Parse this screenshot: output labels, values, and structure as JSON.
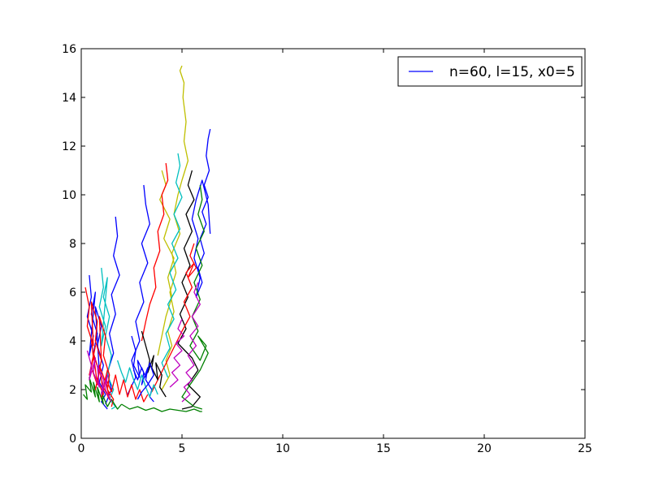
{
  "chart_data": {
    "type": "line",
    "title": "",
    "xlabel": "",
    "ylabel": "",
    "xlim": [
      0,
      25
    ],
    "ylim": [
      0,
      16
    ],
    "xticks": [
      0,
      5,
      10,
      15,
      20,
      25
    ],
    "yticks": [
      0,
      2,
      4,
      6,
      8,
      10,
      12,
      14,
      16
    ],
    "grid": false,
    "legend": {
      "placement": "top-right",
      "label": "n=60, l=15, x0=5",
      "color": "#0000ff"
    },
    "color_cycle": [
      "#0000ff",
      "#008000",
      "#ff0000",
      "#00bfbf",
      "#bf00bf",
      "#bfbf00",
      "#000000"
    ],
    "series": [
      {
        "color": "#bfbf00",
        "x": [
          5.0,
          4.9,
          5.1,
          5.05,
          5.2,
          5.1,
          5.3,
          5.0,
          4.8,
          4.6,
          4.9,
          4.5,
          4.7,
          4.4,
          4.6,
          4.3,
          4.5,
          4.2,
          4.4,
          4.0
        ],
        "y": [
          15.3,
          15.1,
          14.6,
          14.0,
          13.0,
          12.2,
          11.4,
          10.6,
          10.0,
          9.2,
          8.4,
          7.6,
          6.8,
          6.0,
          5.2,
          4.4,
          3.8,
          3.2,
          2.6,
          2.0
        ]
      },
      {
        "color": "#bfbf00",
        "x": [
          4.0,
          4.2,
          3.9,
          4.4,
          4.1,
          4.6,
          4.3,
          4.5,
          4.2,
          4.0,
          3.8
        ],
        "y": [
          11.0,
          10.4,
          9.8,
          9.0,
          8.2,
          7.4,
          6.6,
          5.8,
          5.0,
          4.2,
          3.4
        ]
      },
      {
        "color": "#0000ff",
        "x": [
          6.4,
          6.3,
          6.2,
          6.35,
          6.1,
          6.3,
          6.0,
          6.2,
          5.9,
          6.1,
          5.8,
          6.0,
          5.7,
          5.9,
          5.6,
          5.8,
          5.5,
          5.7,
          6.0,
          6.3,
          6.4
        ],
        "y": [
          12.7,
          12.3,
          11.6,
          11.0,
          10.4,
          9.9,
          9.3,
          8.8,
          8.2,
          7.6,
          7.0,
          6.4,
          5.8,
          6.6,
          7.4,
          8.2,
          9.0,
          9.8,
          10.6,
          9.6,
          8.4
        ]
      },
      {
        "color": "#00bfbf",
        "x": [
          4.8,
          4.9,
          4.7,
          5.0,
          4.6,
          4.9,
          4.5,
          4.8,
          4.4,
          4.7,
          4.3,
          4.6,
          4.2,
          4.4,
          4.0,
          4.3
        ],
        "y": [
          11.7,
          11.2,
          10.5,
          9.9,
          9.2,
          8.6,
          8.0,
          7.4,
          6.8,
          6.1,
          5.5,
          4.9,
          4.3,
          3.7,
          3.1,
          2.5
        ]
      },
      {
        "color": "#000000",
        "x": [
          5.5,
          5.3,
          5.6,
          5.2,
          5.5,
          5.1,
          5.4,
          5.0,
          5.3,
          4.9,
          5.2,
          4.8,
          5.5,
          5.8,
          5.3,
          5.9,
          5.5,
          5.0
        ],
        "y": [
          11.0,
          10.4,
          9.8,
          9.2,
          8.5,
          7.8,
          7.1,
          6.4,
          5.8,
          5.1,
          4.5,
          3.9,
          3.3,
          2.8,
          2.2,
          1.7,
          1.3,
          1.2
        ]
      },
      {
        "color": "#008000",
        "x": [
          5.9,
          6.0,
          5.8,
          6.1,
          5.7,
          6.0,
          5.6,
          5.9,
          5.5,
          5.8,
          5.4,
          5.9,
          6.2,
          5.8,
          6.3,
          5.9,
          5.4,
          5.0,
          5.6,
          6.0
        ],
        "y": [
          10.4,
          9.8,
          9.2,
          8.5,
          7.8,
          7.1,
          6.4,
          5.7,
          5.0,
          4.4,
          3.8,
          3.2,
          3.8,
          4.2,
          3.5,
          2.8,
          2.2,
          1.7,
          1.3,
          1.2
        ]
      },
      {
        "color": "#ff0000",
        "x": [
          5.6,
          5.4,
          5.7,
          5.3,
          5.6,
          5.2,
          5.5,
          5.1,
          5.4,
          5.0,
          4.7,
          4.4,
          4.1,
          3.8,
          3.5
        ],
        "y": [
          8.0,
          7.5,
          7.0,
          6.6,
          7.2,
          6.8,
          6.2,
          5.6,
          5.0,
          4.4,
          3.9,
          3.4,
          2.9,
          2.4,
          1.9
        ]
      },
      {
        "color": "#bf00bf",
        "x": [
          5.8,
          5.6,
          5.9,
          5.5,
          5.8,
          5.4,
          5.7,
          5.3,
          5.6,
          5.2,
          5.5,
          5.1,
          5.4,
          5.0
        ],
        "y": [
          6.4,
          6.0,
          5.5,
          5.0,
          4.6,
          4.2,
          3.8,
          3.4,
          3.0,
          2.7,
          2.4,
          2.1,
          1.8,
          1.5
        ]
      },
      {
        "color": "#ff0000",
        "x": [
          4.2,
          4.3,
          4.0,
          4.1,
          3.8,
          3.9,
          3.6,
          3.7,
          3.4,
          3.2,
          3.0
        ],
        "y": [
          11.3,
          10.6,
          10.0,
          9.2,
          8.5,
          7.7,
          7.0,
          6.2,
          5.5,
          4.8,
          4.0
        ]
      },
      {
        "color": "#0000ff",
        "x": [
          3.1,
          3.2,
          3.4,
          3.0,
          3.3,
          2.9,
          3.1,
          2.7,
          2.9,
          2.5,
          2.7,
          2.3
        ],
        "y": [
          10.4,
          9.6,
          8.8,
          8.0,
          7.2,
          6.4,
          5.6,
          4.8,
          4.0,
          3.2,
          2.5,
          1.8
        ]
      },
      {
        "color": "#0000ff",
        "x": [
          1.7,
          1.8,
          1.6,
          1.9,
          1.5,
          1.7,
          1.4,
          1.6,
          1.3,
          1.5,
          1.2
        ],
        "y": [
          9.1,
          8.3,
          7.5,
          6.7,
          5.9,
          5.1,
          4.3,
          3.5,
          2.7,
          2.0,
          1.4
        ]
      },
      {
        "color": "#0000ff",
        "x": [
          0.4,
          0.5,
          0.3,
          0.6,
          0.4,
          0.7,
          0.5,
          0.8,
          0.6,
          0.9,
          0.7,
          1.0,
          0.8,
          1.1,
          0.9,
          1.2,
          1.0,
          1.3
        ],
        "y": [
          6.7,
          5.8,
          5.0,
          4.2,
          3.4,
          6.0,
          5.1,
          4.3,
          3.5,
          2.7,
          5.4,
          4.6,
          3.8,
          3.0,
          2.3,
          1.8,
          1.5,
          1.2
        ]
      },
      {
        "color": "#00bfbf",
        "x": [
          1.0,
          1.1,
          0.9,
          1.2,
          1.0,
          1.3,
          1.1,
          1.4,
          1.2,
          1.5,
          1.3,
          1.6,
          1.4,
          1.7,
          1.5
        ],
        "y": [
          7.0,
          6.2,
          5.4,
          4.6,
          3.8,
          6.6,
          5.8,
          5.0,
          4.2,
          3.4,
          2.6,
          2.0,
          1.6,
          1.3,
          1.2
        ]
      },
      {
        "color": "#ff0000",
        "x": [
          0.2,
          0.4,
          0.3,
          0.6,
          0.5,
          0.8,
          0.7,
          1.0,
          0.9,
          1.2,
          1.1,
          1.4,
          1.3,
          1.6,
          1.5
        ],
        "y": [
          6.2,
          5.4,
          4.6,
          3.8,
          5.6,
          4.8,
          4.0,
          3.2,
          5.0,
          4.2,
          3.4,
          2.6,
          2.0,
          1.6,
          1.3
        ]
      },
      {
        "color": "#008000",
        "x": [
          0.1,
          0.3,
          0.2,
          0.5,
          0.4,
          0.7,
          0.6,
          0.9,
          0.8,
          1.1,
          1.0,
          1.3,
          1.5,
          1.8,
          2.0
        ],
        "y": [
          1.8,
          1.6,
          2.2,
          1.9,
          2.5,
          1.7,
          2.3,
          1.5,
          2.1,
          1.4,
          1.9,
          1.3,
          1.6,
          1.2,
          1.4
        ]
      },
      {
        "color": "#008000",
        "x": [
          2.0,
          2.4,
          2.8,
          3.2,
          3.6,
          4.0,
          4.4,
          4.8,
          5.2,
          5.6,
          5.9,
          6.0
        ],
        "y": [
          1.4,
          1.2,
          1.3,
          1.15,
          1.25,
          1.1,
          1.2,
          1.15,
          1.1,
          1.2,
          1.1,
          1.1
        ]
      },
      {
        "color": "#ff0000",
        "x": [
          0.5,
          0.6,
          0.4,
          0.7,
          0.5,
          0.8,
          0.6,
          0.9,
          0.7,
          1.0,
          0.8,
          1.1,
          0.9,
          1.2,
          1.0,
          1.3,
          1.1,
          1.4,
          1.2,
          1.5
        ],
        "y": [
          4.1,
          3.3,
          2.6,
          3.8,
          2.9,
          2.2,
          3.5,
          2.7,
          2.0,
          3.2,
          2.4,
          1.8,
          3.0,
          2.3,
          1.7,
          2.8,
          2.1,
          1.6,
          2.5,
          1.9
        ]
      },
      {
        "color": "#ff0000",
        "x": [
          1.5,
          1.7,
          1.9,
          2.1,
          2.3,
          2.5,
          2.7,
          2.9,
          3.1,
          3.3
        ],
        "y": [
          1.9,
          2.6,
          1.8,
          2.4,
          1.7,
          2.2,
          1.6,
          2.0,
          1.5,
          1.8
        ]
      },
      {
        "color": "#0000ff",
        "x": [
          2.5,
          2.7,
          2.6,
          2.9,
          2.8,
          3.1,
          3.0,
          3.3,
          3.2,
          3.5,
          3.4,
          3.6
        ],
        "y": [
          4.2,
          3.6,
          3.0,
          2.5,
          3.2,
          2.7,
          2.2,
          2.9,
          2.4,
          2.0,
          1.7,
          1.5
        ]
      },
      {
        "color": "#bf00bf",
        "x": [
          0.3,
          0.5,
          0.4,
          0.7,
          0.6,
          0.9,
          0.8,
          1.1,
          1.0,
          1.3,
          1.2,
          1.5
        ],
        "y": [
          3.6,
          3.0,
          2.4,
          3.3,
          2.7,
          2.1,
          3.0,
          2.4,
          1.8,
          2.6,
          2.0,
          1.5
        ]
      },
      {
        "color": "#00bfbf",
        "x": [
          1.8,
          2.0,
          2.2,
          2.4,
          2.6,
          2.8,
          3.0,
          3.2,
          3.4,
          3.6,
          3.8
        ],
        "y": [
          3.2,
          2.7,
          2.3,
          2.9,
          2.4,
          2.0,
          2.6,
          2.1,
          1.7,
          2.2,
          1.8
        ]
      },
      {
        "color": "#000000",
        "x": [
          3.0,
          3.2,
          3.4,
          3.3,
          3.6,
          3.5,
          3.8,
          3.7,
          4.0,
          3.9,
          4.2
        ],
        "y": [
          4.4,
          3.8,
          3.2,
          2.7,
          3.4,
          2.9,
          2.4,
          3.1,
          2.6,
          2.1,
          1.7
        ]
      },
      {
        "color": "#0000ff",
        "x": [
          2.6,
          2.8,
          3.0,
          3.2,
          3.4,
          3.6,
          3.3,
          3.0,
          2.8
        ],
        "y": [
          2.8,
          2.4,
          2.9,
          2.5,
          3.1,
          2.6,
          2.2,
          1.9,
          1.6
        ]
      },
      {
        "color": "#bf00bf",
        "x": [
          5.0,
          4.8,
          5.1,
          4.7,
          5.0,
          4.6,
          4.9,
          4.5,
          4.8,
          4.4
        ],
        "y": [
          4.9,
          4.5,
          4.2,
          3.9,
          3.6,
          3.3,
          3.0,
          2.7,
          2.4,
          2.1
        ]
      }
    ]
  }
}
